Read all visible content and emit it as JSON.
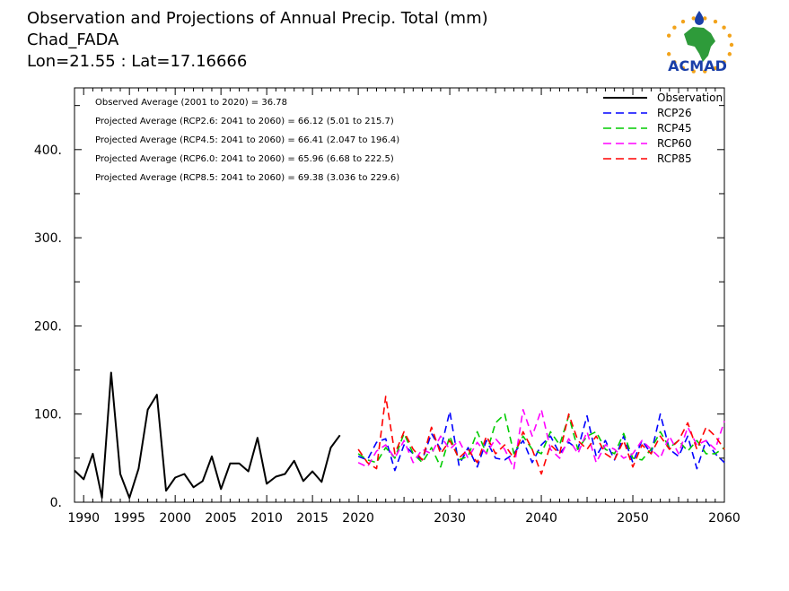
{
  "header": {
    "title": "Observation and Projections of Annual Precip. Total (mm)",
    "location": "Chad_FADA",
    "coords": "Lon=21.55 : Lat=17.16666"
  },
  "logo": {
    "text": "ACMAD",
    "colors": {
      "green": "#2e9b3a",
      "orange": "#f2a31b",
      "blue": "#1a3fa8"
    }
  },
  "chart_data": {
    "type": "line",
    "xlim": [
      1989,
      2060
    ],
    "ylim": [
      0,
      470
    ],
    "x_ticks": [
      1990,
      1995,
      2000,
      2005,
      2010,
      2015,
      2020,
      2030,
      2040,
      2050,
      2060
    ],
    "x_tick_labels": [
      "1990",
      "1995",
      "2000",
      "2005",
      "2010",
      "2015",
      "2020",
      "2030",
      "2040",
      "2050",
      "2060"
    ],
    "y_ticks": [
      0,
      100,
      200,
      300,
      400
    ],
    "y_tick_labels": [
      "0.",
      "100.",
      "200.",
      "300.",
      "400."
    ],
    "grid": false,
    "legend_position": "top-right",
    "annotations": [
      "Observed Average (2001 to 2020) = 36.78",
      "Projected Average (RCP2.6: 2041 to 2060) = 66.12 (5.01 to 215.7)",
      "Projected Average (RCP4.5: 2041 to 2060) = 66.41 (2.047 to 196.4)",
      "Projected Average (RCP6.0: 2041 to 2060) = 65.96 (6.68 to 222.5)",
      "Projected Average (RCP8.5: 2041 to 2060) = 69.38 (3.036 to 229.6)"
    ],
    "series": [
      {
        "name": "Observation",
        "color": "#000000",
        "dash": false,
        "x": [
          1989,
          1990,
          1991,
          1992,
          1993,
          1994,
          1995,
          1996,
          1997,
          1998,
          1999,
          2000,
          2001,
          2002,
          2003,
          2004,
          2005,
          2006,
          2007,
          2008,
          2009,
          2010,
          2011,
          2012,
          2013,
          2014,
          2015,
          2016,
          2017,
          2018,
          2019,
          2020
        ],
        "y": [
          36,
          26,
          55,
          5,
          147,
          32,
          5,
          38,
          105,
          122,
          13,
          28,
          32,
          17,
          24,
          52,
          15,
          44,
          44,
          35,
          73,
          21,
          29,
          32,
          47,
          24,
          35,
          23,
          62,
          76,
          null,
          null
        ]
      },
      {
        "name": "RCP26",
        "color": "#0000ff",
        "dash": true,
        "x": [
          2020,
          2021,
          2022,
          2023,
          2024,
          2025,
          2026,
          2027,
          2028,
          2029,
          2030,
          2031,
          2032,
          2033,
          2034,
          2035,
          2036,
          2037,
          2038,
          2039,
          2040,
          2041,
          2042,
          2043,
          2044,
          2045,
          2046,
          2047,
          2048,
          2049,
          2050,
          2051,
          2052,
          2053,
          2054,
          2055,
          2056,
          2057,
          2058,
          2059,
          2060
        ],
        "y": [
          52,
          48,
          68,
          72,
          36,
          65,
          55,
          48,
          78,
          60,
          103,
          42,
          62,
          40,
          70,
          50,
          48,
          55,
          70,
          45,
          65,
          75,
          55,
          68,
          60,
          98,
          52,
          70,
          48,
          75,
          45,
          70,
          55,
          100,
          60,
          52,
          75,
          38,
          70,
          55,
          45
        ]
      },
      {
        "name": "RCP45",
        "color": "#00cc00",
        "dash": true,
        "x": [
          2020,
          2021,
          2022,
          2023,
          2024,
          2025,
          2026,
          2027,
          2028,
          2029,
          2030,
          2031,
          2032,
          2033,
          2034,
          2035,
          2036,
          2037,
          2038,
          2039,
          2040,
          2041,
          2042,
          2043,
          2044,
          2045,
          2046,
          2047,
          2048,
          2049,
          2050,
          2051,
          2052,
          2053,
          2054,
          2055,
          2056,
          2057,
          2058,
          2059,
          2060
        ],
        "y": [
          55,
          48,
          45,
          62,
          50,
          78,
          55,
          45,
          62,
          40,
          75,
          48,
          52,
          80,
          55,
          90,
          100,
          55,
          75,
          60,
          55,
          80,
          65,
          98,
          60,
          75,
          80,
          60,
          55,
          78,
          50,
          48,
          60,
          80,
          62,
          70,
          58,
          70,
          55,
          55,
          62
        ]
      },
      {
        "name": "RCP60",
        "color": "#ff00ff",
        "dash": true,
        "x": [
          2020,
          2021,
          2022,
          2023,
          2024,
          2025,
          2026,
          2027,
          2028,
          2029,
          2030,
          2031,
          2032,
          2033,
          2034,
          2035,
          2036,
          2037,
          2038,
          2039,
          2040,
          2041,
          2042,
          2043,
          2044,
          2045,
          2046,
          2047,
          2048,
          2049,
          2050,
          2051,
          2052,
          2053,
          2054,
          2055,
          2056,
          2057,
          2058,
          2059,
          2060
        ],
        "y": [
          45,
          40,
          58,
          65,
          50,
          70,
          45,
          60,
          55,
          75,
          60,
          70,
          50,
          68,
          55,
          72,
          60,
          38,
          105,
          75,
          105,
          60,
          50,
          72,
          55,
          80,
          45,
          65,
          60,
          50,
          55,
          70,
          60,
          50,
          75,
          55,
          85,
          65,
          70,
          60,
          92
        ]
      },
      {
        "name": "RCP85",
        "color": "#ff0000",
        "dash": true,
        "x": [
          2020,
          2021,
          2022,
          2023,
          2024,
          2025,
          2026,
          2027,
          2028,
          2029,
          2030,
          2031,
          2032,
          2033,
          2034,
          2035,
          2036,
          2037,
          2038,
          2039,
          2040,
          2041,
          2042,
          2043,
          2044,
          2045,
          2046,
          2047,
          2048,
          2049,
          2050,
          2051,
          2052,
          2053,
          2054,
          2055,
          2056,
          2057,
          2058,
          2059,
          2060
        ],
        "y": [
          60,
          45,
          38,
          120,
          55,
          80,
          60,
          48,
          85,
          55,
          70,
          50,
          60,
          45,
          75,
          55,
          65,
          50,
          80,
          60,
          32,
          65,
          55,
          100,
          70,
          60,
          75,
          55,
          48,
          70,
          40,
          65,
          55,
          75,
          60,
          70,
          90,
          60,
          85,
          75,
          60
        ]
      }
    ]
  }
}
